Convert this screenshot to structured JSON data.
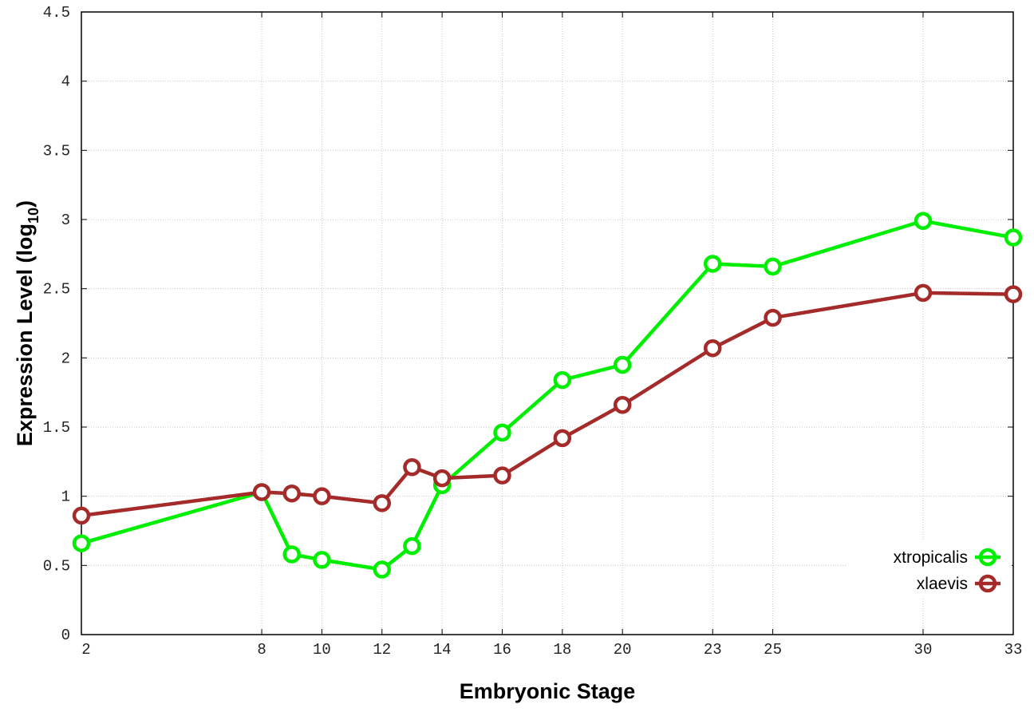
{
  "chart_data": {
    "type": "line",
    "title": "",
    "xlabel": "Embryonic Stage",
    "ylabel_main": "Expression Level (log",
    "ylabel_sub": "10",
    "ylabel_close": ")",
    "x": [
      2,
      8,
      9,
      10,
      12,
      13,
      14,
      16,
      18,
      20,
      23,
      25,
      30,
      33
    ],
    "xticks": [
      "2",
      "8",
      "10",
      "12",
      "14",
      "16",
      "18",
      "20",
      "23",
      "25",
      "30",
      "33"
    ],
    "yticks": [
      "0",
      "0.5",
      "1",
      "1.5",
      "2",
      "2.5",
      "3",
      "3.5",
      "4",
      "4.5"
    ],
    "xlim": [
      2,
      33
    ],
    "ylim": [
      0,
      4.5
    ],
    "grid": true,
    "legend_position": "bottom-right",
    "series": [
      {
        "name": "xtropicalis",
        "color": "#00ee00",
        "values": [
          0.66,
          1.03,
          0.58,
          0.54,
          0.47,
          0.64,
          1.08,
          1.46,
          1.84,
          1.95,
          2.68,
          2.66,
          2.99,
          2.87
        ]
      },
      {
        "name": "xlaevis",
        "color": "#a52a2a",
        "values": [
          0.86,
          1.03,
          1.02,
          1.0,
          0.95,
          1.21,
          1.13,
          1.15,
          1.42,
          1.66,
          2.07,
          2.29,
          2.47,
          2.46
        ]
      }
    ]
  }
}
